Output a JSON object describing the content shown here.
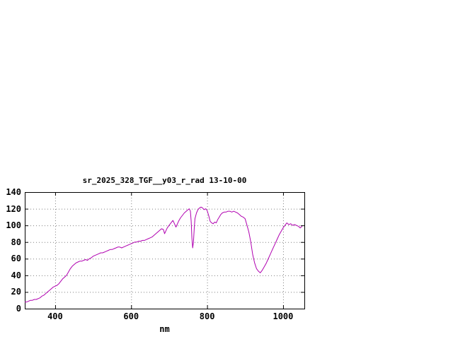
{
  "page": {
    "background": "#ffffff"
  },
  "chart_data": {
    "type": "line",
    "title": "sr_2025_328_TGF__y03_r_rad 13-10-00",
    "xlabel": "nm",
    "ylabel": "",
    "xlim": [
      320,
      1056
    ],
    "ylim": [
      0,
      140
    ],
    "xticks": [
      400,
      600,
      800,
      1000
    ],
    "yticks": [
      0,
      20,
      40,
      60,
      80,
      100,
      120,
      140
    ],
    "grid": true,
    "legend": "none",
    "axis_color": "#000000",
    "grid_color": "#808080",
    "series": [
      {
        "name": "sr_2025_328_TGF__y03_r_rad",
        "color": "#b000b0",
        "points": [
          [
            320,
            8
          ],
          [
            325,
            8
          ],
          [
            330,
            9
          ],
          [
            335,
            10
          ],
          [
            340,
            10
          ],
          [
            345,
            11
          ],
          [
            350,
            11
          ],
          [
            355,
            12
          ],
          [
            360,
            13
          ],
          [
            365,
            15
          ],
          [
            370,
            16
          ],
          [
            375,
            18
          ],
          [
            380,
            20
          ],
          [
            385,
            22
          ],
          [
            390,
            24
          ],
          [
            395,
            26
          ],
          [
            400,
            27
          ],
          [
            405,
            28
          ],
          [
            410,
            30
          ],
          [
            415,
            33
          ],
          [
            420,
            36
          ],
          [
            425,
            38
          ],
          [
            430,
            40
          ],
          [
            435,
            44
          ],
          [
            440,
            48
          ],
          [
            445,
            51
          ],
          [
            450,
            53
          ],
          [
            455,
            55
          ],
          [
            460,
            56
          ],
          [
            465,
            57
          ],
          [
            470,
            57
          ],
          [
            475,
            58
          ],
          [
            480,
            59
          ],
          [
            485,
            58
          ],
          [
            490,
            60
          ],
          [
            495,
            61
          ],
          [
            500,
            63
          ],
          [
            505,
            64
          ],
          [
            510,
            65
          ],
          [
            515,
            66
          ],
          [
            520,
            67
          ],
          [
            525,
            67
          ],
          [
            530,
            68
          ],
          [
            535,
            69
          ],
          [
            540,
            70
          ],
          [
            545,
            71
          ],
          [
            550,
            71
          ],
          [
            555,
            72
          ],
          [
            560,
            73
          ],
          [
            565,
            74
          ],
          [
            570,
            74
          ],
          [
            575,
            73
          ],
          [
            580,
            74
          ],
          [
            585,
            75
          ],
          [
            590,
            76
          ],
          [
            595,
            77
          ],
          [
            600,
            78
          ],
          [
            605,
            79
          ],
          [
            610,
            80
          ],
          [
            615,
            80
          ],
          [
            620,
            81
          ],
          [
            625,
            81
          ],
          [
            630,
            82
          ],
          [
            635,
            82
          ],
          [
            640,
            83
          ],
          [
            645,
            84
          ],
          [
            650,
            85
          ],
          [
            655,
            86
          ],
          [
            660,
            88
          ],
          [
            665,
            90
          ],
          [
            670,
            92
          ],
          [
            675,
            94
          ],
          [
            680,
            96
          ],
          [
            685,
            95
          ],
          [
            688,
            90
          ],
          [
            691,
            93
          ],
          [
            695,
            97
          ],
          [
            700,
            100
          ],
          [
            705,
            103
          ],
          [
            710,
            106
          ],
          [
            714,
            102
          ],
          [
            718,
            98
          ],
          [
            722,
            102
          ],
          [
            726,
            106
          ],
          [
            730,
            109
          ],
          [
            735,
            112
          ],
          [
            740,
            115
          ],
          [
            745,
            117
          ],
          [
            750,
            119
          ],
          [
            753,
            120
          ],
          [
            756,
            117
          ],
          [
            758,
            105
          ],
          [
            760,
            85
          ],
          [
            762,
            73
          ],
          [
            764,
            80
          ],
          [
            766,
            96
          ],
          [
            768,
            108
          ],
          [
            772,
            115
          ],
          [
            776,
            119
          ],
          [
            780,
            121
          ],
          [
            784,
            122
          ],
          [
            788,
            121
          ],
          [
            792,
            119
          ],
          [
            796,
            120
          ],
          [
            800,
            118
          ],
          [
            804,
            112
          ],
          [
            808,
            105
          ],
          [
            812,
            103
          ],
          [
            816,
            102
          ],
          [
            820,
            104
          ],
          [
            824,
            103
          ],
          [
            828,
            107
          ],
          [
            832,
            110
          ],
          [
            836,
            113
          ],
          [
            840,
            115
          ],
          [
            845,
            116
          ],
          [
            850,
            116
          ],
          [
            855,
            117
          ],
          [
            860,
            117
          ],
          [
            865,
            116
          ],
          [
            870,
            117
          ],
          [
            875,
            116
          ],
          [
            880,
            115
          ],
          [
            885,
            113
          ],
          [
            890,
            111
          ],
          [
            895,
            110
          ],
          [
            900,
            108
          ],
          [
            905,
            100
          ],
          [
            910,
            92
          ],
          [
            915,
            80
          ],
          [
            920,
            65
          ],
          [
            925,
            55
          ],
          [
            930,
            48
          ],
          [
            935,
            45
          ],
          [
            940,
            43
          ],
          [
            945,
            46
          ],
          [
            950,
            50
          ],
          [
            955,
            54
          ],
          [
            960,
            59
          ],
          [
            965,
            64
          ],
          [
            970,
            69
          ],
          [
            975,
            74
          ],
          [
            980,
            79
          ],
          [
            985,
            84
          ],
          [
            990,
            89
          ],
          [
            995,
            93
          ],
          [
            1000,
            97
          ],
          [
            1005,
            100
          ],
          [
            1010,
            103
          ],
          [
            1015,
            101
          ],
          [
            1020,
            102
          ],
          [
            1025,
            100
          ],
          [
            1030,
            101
          ],
          [
            1035,
            100
          ],
          [
            1040,
            99
          ],
          [
            1045,
            97
          ],
          [
            1050,
            99
          ]
        ]
      }
    ]
  }
}
